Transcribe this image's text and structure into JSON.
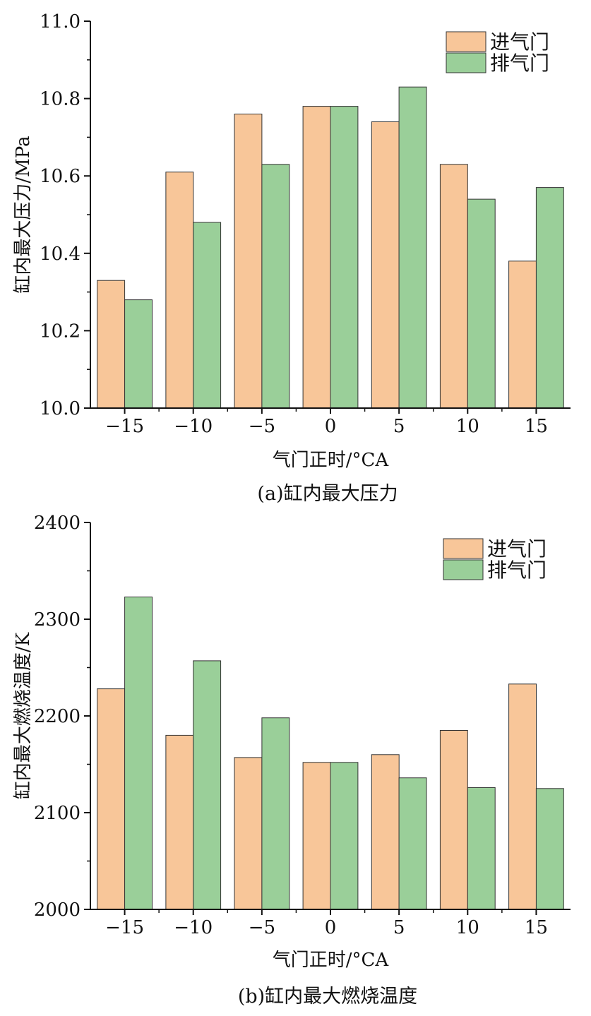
{
  "colors": {
    "intake": "#F8C699",
    "exhaust": "#9ACF99",
    "stroke": "#333333"
  },
  "chart_data": [
    {
      "type": "bar",
      "caption": "(a)缸内最大压力",
      "xlabel": "气门正时/°CA",
      "ylabel": "缸内最大压力/MPa",
      "categories": [
        "−15",
        "−10",
        "−5",
        "0",
        "5",
        "10",
        "15"
      ],
      "ylim": [
        10.0,
        11.0
      ],
      "yticks": [
        "10.0",
        "10.2",
        "10.4",
        "10.6",
        "10.8",
        "11.0"
      ],
      "legend_position": "top-right",
      "series": [
        {
          "name": "进气门",
          "values": [
            10.33,
            10.61,
            10.76,
            10.78,
            10.74,
            10.63,
            10.38
          ]
        },
        {
          "name": "排气门",
          "values": [
            10.28,
            10.48,
            10.63,
            10.78,
            10.83,
            10.54,
            10.57
          ]
        }
      ]
    },
    {
      "type": "bar",
      "caption": "(b)缸内最大燃烧温度",
      "xlabel": "气门正时/°CA",
      "ylabel": "缸内最大燃烧温度/K",
      "categories": [
        "−15",
        "−10",
        "−5",
        "0",
        "5",
        "10",
        "15"
      ],
      "ylim": [
        2000,
        2400
      ],
      "yticks": [
        "2000",
        "2100",
        "2200",
        "2300",
        "2400"
      ],
      "legend_position": "top-right",
      "series": [
        {
          "name": "进气门",
          "values": [
            2228,
            2180,
            2157,
            2152,
            2160,
            2185,
            2233
          ]
        },
        {
          "name": "排气门",
          "values": [
            2323,
            2257,
            2198,
            2152,
            2136,
            2126,
            2125
          ]
        }
      ]
    }
  ]
}
